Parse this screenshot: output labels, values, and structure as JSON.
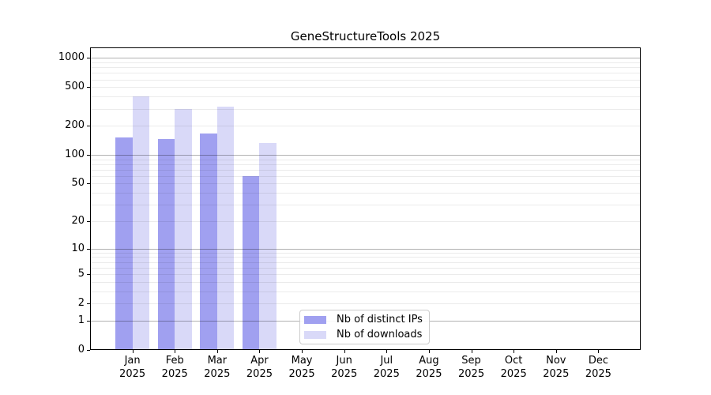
{
  "chart_data": {
    "type": "bar",
    "title": "GeneStructureTools 2025",
    "categories": [
      "Jan",
      "Feb",
      "Mar",
      "Apr",
      "May",
      "Jun",
      "Jul",
      "Aug",
      "Sep",
      "Oct",
      "Nov",
      "Dec"
    ],
    "category_year": "2025",
    "series": [
      {
        "name": "Nb of distinct IPs",
        "color": "#a0a0f0",
        "values": [
          150,
          146,
          166,
          60,
          null,
          null,
          null,
          null,
          null,
          null,
          null,
          null
        ]
      },
      {
        "name": "Nb of downloads",
        "color": "#d9d9f8",
        "values": [
          400,
          300,
          317,
          133,
          null,
          null,
          null,
          null,
          null,
          null,
          null,
          null
        ]
      }
    ],
    "y_ticks": [
      0,
      1,
      2,
      5,
      10,
      20,
      50,
      100,
      200,
      500,
      1000
    ],
    "y_scale": "log1p",
    "ylim": [
      0,
      1285
    ],
    "grid": true,
    "major_gridlines_at": [
      1,
      10,
      100,
      1000
    ],
    "legend_position": "lower-center-inside",
    "axis_color": "#000000",
    "major_grid_color": "#b0b0b0",
    "minor_grid_color": "#e9e9e9"
  }
}
